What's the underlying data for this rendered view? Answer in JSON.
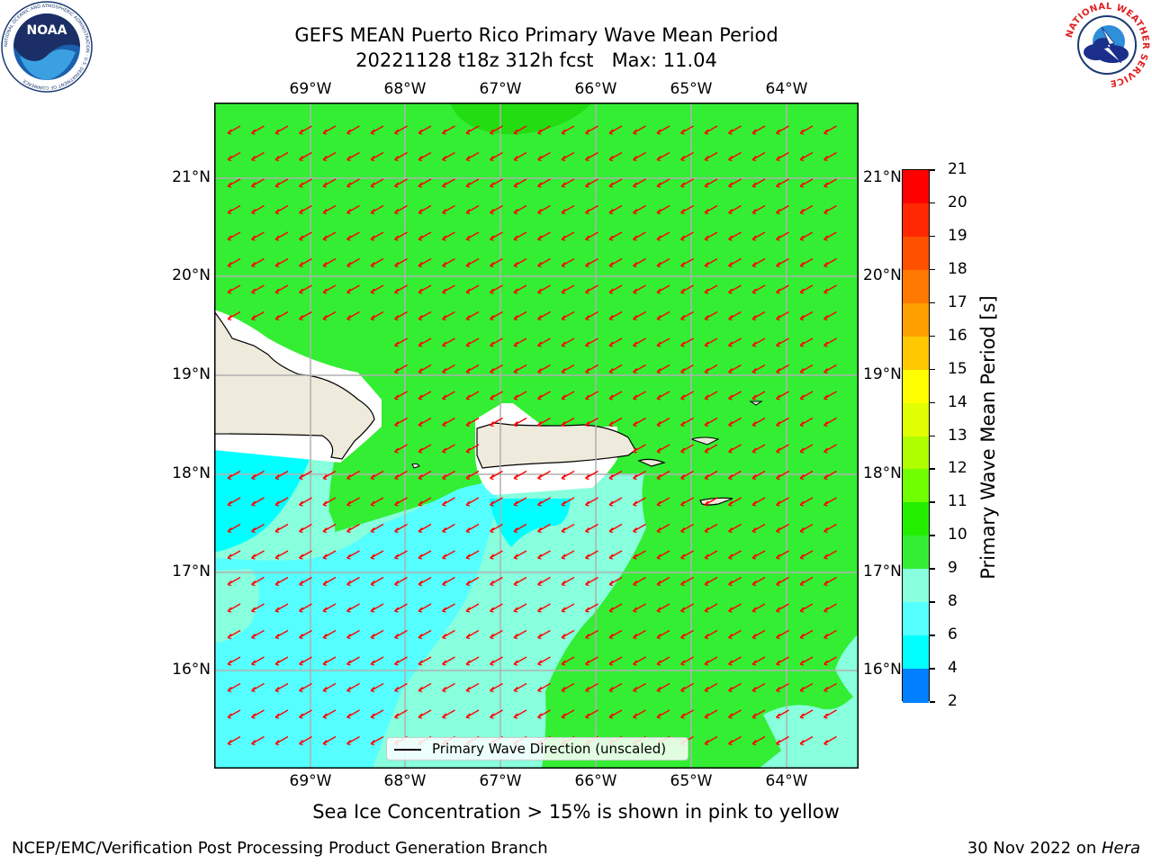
{
  "title": {
    "line1": "GEFS MEAN Puerto Rico Primary Wave Mean Period",
    "line2": "20221128 t18z 312h fcst   Max: 11.04"
  },
  "map": {
    "lon_labels": [
      "69°W",
      "68°W",
      "67°W",
      "66°W",
      "65°W",
      "64°W"
    ],
    "lat_labels": [
      "21°N",
      "20°N",
      "19°N",
      "18°N",
      "17°N",
      "16°N"
    ],
    "colors": {
      "land": "#eeeadc",
      "ice_free_white": "#ffffff",
      "period_10_11": "#33ee33",
      "period_11_12": "#22dd11",
      "period_9_10": "#88ffdd",
      "period_8_9": "#55ffff",
      "period_6_8": "#00ffff",
      "arrow": "#ff0000",
      "grid": "#b0b0b0"
    },
    "arrow_direction": "toward southwest"
  },
  "legend": {
    "label": "Primary Wave Direction (unscaled)"
  },
  "colorbar": {
    "label": "Primary Wave Mean Period [s]",
    "ticks": [
      "21",
      "20",
      "19",
      "18",
      "17",
      "16",
      "15",
      "14",
      "13",
      "12",
      "11",
      "10",
      "9",
      "8",
      "6",
      "4",
      "2"
    ],
    "colors": [
      "#ff0000",
      "#ff2800",
      "#ff5000",
      "#ff7800",
      "#ffa000",
      "#ffc800",
      "#ffff00",
      "#e0ff00",
      "#b0ff00",
      "#70ff00",
      "#22ee00",
      "#33ee33",
      "#88ffdd",
      "#55ffff",
      "#00ffff",
      "#0080ff",
      "#0000ff"
    ]
  },
  "ice_note": "Sea Ice Concentration > 15% is shown in pink to yellow",
  "footer": {
    "left": "NCEP/EMC/Verification Post Processing Product Generation Branch",
    "right_prefix": "30 Nov 2022 on ",
    "right_machine": "Hera"
  },
  "logos": {
    "noaa_text": "NOAA",
    "noaa_ring_text": "NATIONAL OCEANIC AND ATMOSPHERIC ADMINISTRATION · U.S. DEPARTMENT OF COMMERCE",
    "nws_ring_text": "NATIONAL WEATHER SERVICE"
  }
}
